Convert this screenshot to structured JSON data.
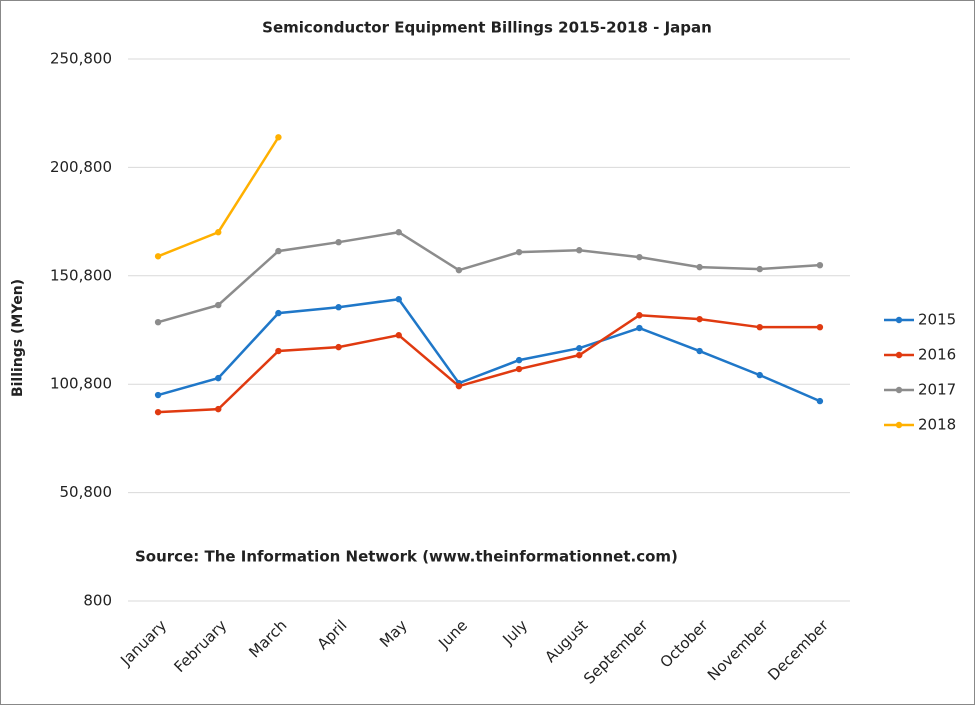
{
  "chart_data": {
    "type": "line",
    "title": "Semiconductor Equipment Billings 2015-2018 - Japan",
    "y_label": "Billings (MYen)",
    "annotation": "Source: The Information Network (www.theinformationnet.com)",
    "categories": [
      "January",
      "February",
      "March",
      "April",
      "May",
      "June",
      "July",
      "August",
      "September",
      "October",
      "November",
      "December"
    ],
    "series": [
      {
        "name": "2015",
        "color": "#1f77c8",
        "values": [
          95800,
          103600,
          133600,
          136300,
          140000,
          101300,
          111900,
          117400,
          126700,
          116100,
          105000,
          93000
        ]
      },
      {
        "name": "2016",
        "color": "#e03a10",
        "values": [
          87900,
          89300,
          116100,
          117900,
          123400,
          99900,
          107800,
          114200,
          132600,
          130800,
          127100,
          127100
        ]
      },
      {
        "name": "2017",
        "color": "#8c8c8c",
        "values": [
          129400,
          137300,
          162200,
          166300,
          170900,
          153400,
          161700,
          162600,
          159400,
          154800,
          153900,
          155700
        ]
      },
      {
        "name": "2018",
        "color": "#ffb000",
        "values": [
          159800,
          170900,
          214700,
          null,
          null,
          null,
          null,
          null,
          null,
          null,
          null,
          null
        ]
      }
    ],
    "ylim": [
      800,
      250800
    ],
    "yticks": [
      {
        "value": 800,
        "label": "800"
      },
      {
        "value": 50800,
        "label": "50,800"
      },
      {
        "value": 100800,
        "label": "100,800"
      },
      {
        "value": 150800,
        "label": "150,800"
      },
      {
        "value": 200800,
        "label": "200,800"
      },
      {
        "value": 250800,
        "label": "250,800"
      }
    ],
    "grid": true,
    "legend": "right"
  }
}
